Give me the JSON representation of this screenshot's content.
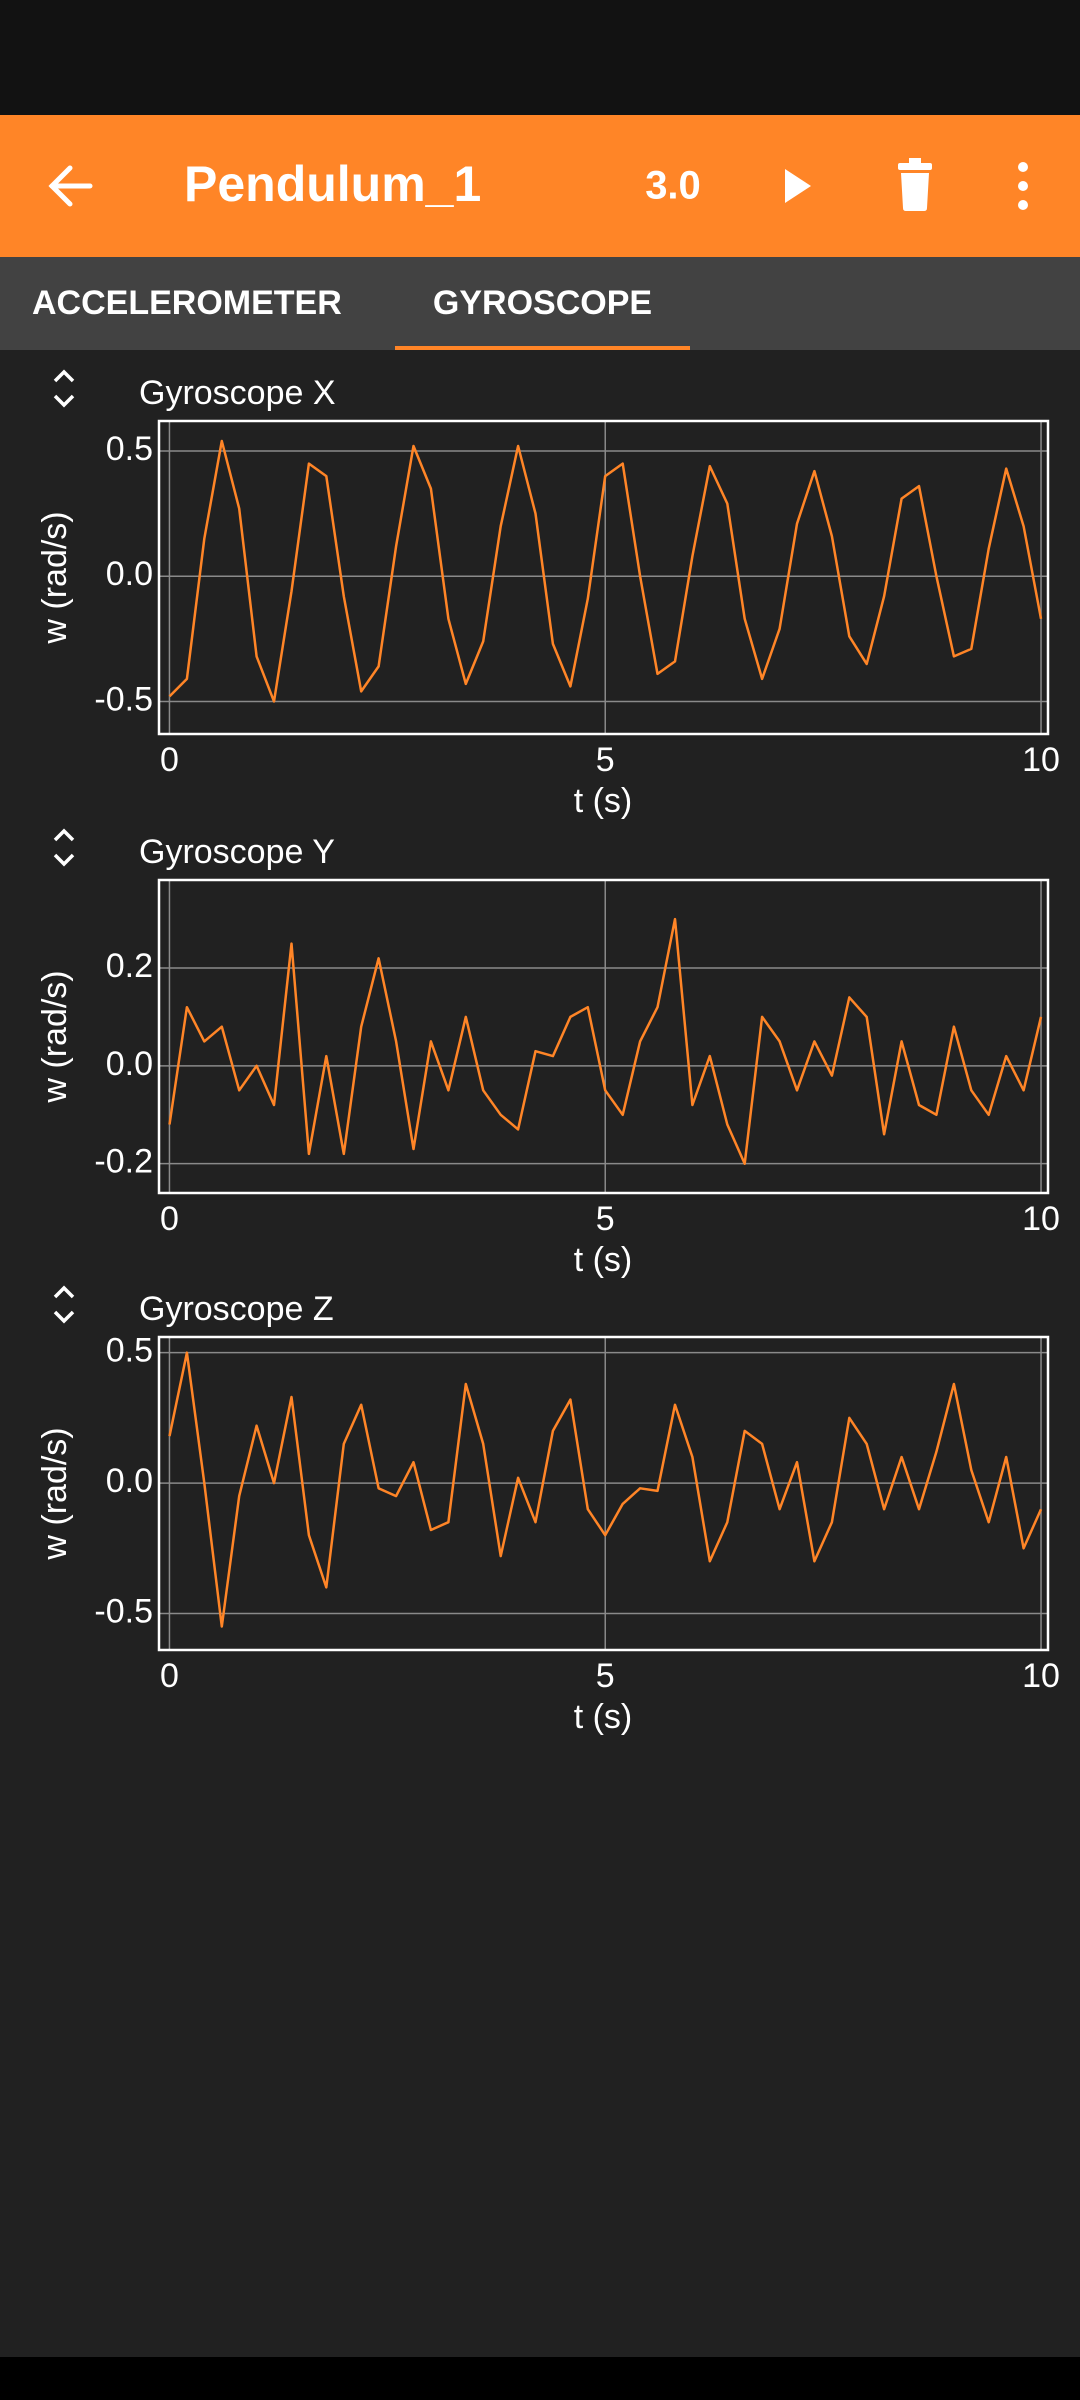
{
  "toolbar": {
    "title": "Pendulum_1",
    "rate": "3.0"
  },
  "tabs": [
    "ACCELEROMETER",
    "GYROSCOPE"
  ],
  "chart_data": [
    {
      "type": "line",
      "title": "Gyroscope X",
      "xlabel": "t (s)",
      "ylabel": "w (rad/s)",
      "color": "#ff8527",
      "grid": true,
      "xlim": [
        -0.12,
        10.08
      ],
      "ylim": [
        -0.63,
        0.62
      ],
      "xticks": [
        0,
        5,
        10
      ],
      "yticks": [
        -0.5,
        {
          "value": 0,
          "label": "0.0"
        },
        0.5
      ],
      "x": [
        0,
        0.2,
        0.4,
        0.6,
        0.8,
        1,
        1.2,
        1.4,
        1.6,
        1.8,
        2,
        2.2,
        2.4,
        2.6,
        2.8,
        3,
        3.2,
        3.4,
        3.6,
        3.8,
        4,
        4.2,
        4.4,
        4.6,
        4.8,
        5,
        5.2,
        5.4,
        5.6,
        5.8,
        6,
        6.2,
        6.4,
        6.6,
        6.8,
        7,
        7.2,
        7.4,
        7.6,
        7.8,
        8,
        8.2,
        8.4,
        8.6,
        8.8,
        9,
        9.2,
        9.4,
        9.6,
        9.8,
        10
      ],
      "values": [
        -0.48,
        -0.41,
        0.15,
        0.54,
        0.27,
        -0.32,
        -0.5,
        -0.06,
        0.45,
        0.4,
        -0.08,
        -0.46,
        -0.36,
        0.12,
        0.52,
        0.35,
        -0.17,
        -0.43,
        -0.26,
        0.2,
        0.52,
        0.25,
        -0.27,
        -0.44,
        -0.09,
        0.4,
        0.45,
        0,
        -0.39,
        -0.34,
        0.08,
        0.44,
        0.29,
        -0.17,
        -0.41,
        -0.21,
        0.21,
        0.42,
        0.16,
        -0.24,
        -0.35,
        -0.08,
        0.31,
        0.36,
        0,
        -0.32,
        -0.29,
        0.11,
        0.43,
        0.2,
        -0.17
      ]
    },
    {
      "type": "line",
      "title": "Gyroscope Y",
      "xlabel": "t (s)",
      "ylabel": "w (rad/s)",
      "color": "#ff8527",
      "grid": true,
      "xlim": [
        -0.12,
        10.08
      ],
      "ylim": [
        -0.26,
        0.38
      ],
      "xticks": [
        0,
        5,
        10
      ],
      "yticks": [
        -0.2,
        {
          "value": 0,
          "label": "0.0"
        },
        0.2
      ],
      "x": [
        0,
        0.2,
        0.4,
        0.6,
        0.8,
        1,
        1.2,
        1.4,
        1.6,
        1.8,
        2,
        2.2,
        2.4,
        2.6,
        2.8,
        3,
        3.2,
        3.4,
        3.6,
        3.8,
        4,
        4.2,
        4.4,
        4.6,
        4.8,
        5,
        5.2,
        5.4,
        5.6,
        5.8,
        6,
        6.2,
        6.4,
        6.6,
        6.8,
        7,
        7.2,
        7.4,
        7.6,
        7.8,
        8,
        8.2,
        8.4,
        8.6,
        8.8,
        9,
        9.2,
        9.4,
        9.6,
        9.8,
        10
      ],
      "values": [
        -0.12,
        0.12,
        0.05,
        0.08,
        -0.05,
        0,
        -0.08,
        0.25,
        -0.18,
        0.02,
        -0.18,
        0.08,
        0.22,
        0.05,
        -0.17,
        0.05,
        -0.05,
        0.1,
        -0.05,
        -0.1,
        -0.13,
        0.03,
        0.02,
        0.1,
        0.12,
        -0.05,
        -0.1,
        0.05,
        0.12,
        0.3,
        -0.08,
        0.02,
        -0.12,
        -0.2,
        0.1,
        0.05,
        -0.05,
        0.05,
        -0.02,
        0.14,
        0.1,
        -0.14,
        0.05,
        -0.08,
        -0.1,
        0.08,
        -0.05,
        -0.1,
        0.02,
        -0.05,
        0.1
      ]
    },
    {
      "type": "line",
      "title": "Gyroscope Z",
      "xlabel": "t (s)",
      "ylabel": "w (rad/s)",
      "color": "#ff8527",
      "grid": true,
      "xlim": [
        -0.12,
        10.08
      ],
      "ylim": [
        -0.64,
        0.56
      ],
      "xticks": [
        0,
        5,
        10
      ],
      "yticks": [
        -0.5,
        {
          "value": 0,
          "label": "0.0"
        },
        0.5
      ],
      "x": [
        0,
        0.2,
        0.4,
        0.6,
        0.8,
        1,
        1.2,
        1.4,
        1.6,
        1.8,
        2,
        2.2,
        2.4,
        2.6,
        2.8,
        3,
        3.2,
        3.4,
        3.6,
        3.8,
        4,
        4.2,
        4.4,
        4.6,
        4.8,
        5,
        5.2,
        5.4,
        5.6,
        5.8,
        6,
        6.2,
        6.4,
        6.6,
        6.8,
        7,
        7.2,
        7.4,
        7.6,
        7.8,
        8,
        8.2,
        8.4,
        8.6,
        8.8,
        9,
        9.2,
        9.4,
        9.6,
        9.8,
        10
      ],
      "values": [
        0.18,
        0.5,
        0,
        -0.55,
        -0.05,
        0.22,
        0,
        0.33,
        -0.2,
        -0.4,
        0.15,
        0.3,
        -0.02,
        -0.05,
        0.08,
        -0.18,
        -0.15,
        0.38,
        0.15,
        -0.28,
        0.02,
        -0.15,
        0.2,
        0.32,
        -0.1,
        -0.2,
        -0.08,
        -0.02,
        -0.03,
        0.3,
        0.1,
        -0.3,
        -0.15,
        0.2,
        0.15,
        -0.1,
        0.08,
        -0.3,
        -0.15,
        0.25,
        0.15,
        -0.1,
        0.1,
        -0.1,
        0.12,
        0.38,
        0.05,
        -0.15,
        0.1,
        -0.25,
        -0.1
      ]
    }
  ]
}
